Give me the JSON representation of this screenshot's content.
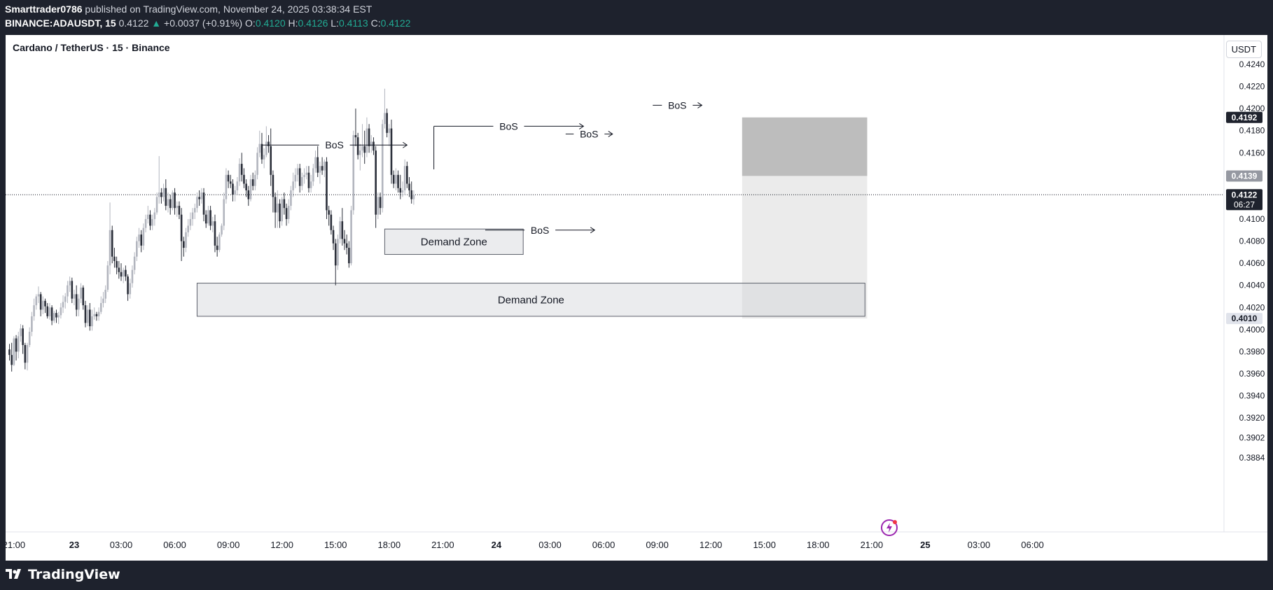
{
  "header": {
    "author": "Smarttrader0786",
    "published_text": "published on TradingView.com, November 24, 2025 03:38:34 EST",
    "symbol": "BINANCE:ADAUSDT, 15",
    "last_price": "0.4122",
    "change": "+0.0037 (+0.91%)",
    "o_label": "O:",
    "o_value": "0.4120",
    "h_label": "H:",
    "h_value": "0.4126",
    "l_label": "L:",
    "l_value": "0.4113",
    "c_label": "C:",
    "c_value": "0.4122"
  },
  "chart_header": {
    "title": "Cardano / TetherUS · 15 · Binance",
    "currency": "USDT"
  },
  "brand": {
    "logo_text": "TradingView"
  },
  "colors": {
    "up": "#b2b5be",
    "down": "#2a2e39",
    "accent": "#22ab94",
    "background": "#ffffff"
  },
  "chart_data": {
    "type": "candlestick",
    "interval": "15",
    "ylim": [
      0.3884,
      0.4252
    ],
    "y_ticks": [
      "0.4240",
      "0.4220",
      "0.4200",
      "0.4180",
      "0.4160",
      "0.4100",
      "0.4080",
      "0.4060",
      "0.4040",
      "0.4020",
      "0.4000",
      "0.3980",
      "0.3960",
      "0.3940",
      "0.3920",
      "0.3902",
      "0.3884"
    ],
    "x_ticks": [
      "21:00",
      "23",
      "03:00",
      "06:00",
      "09:00",
      "12:00",
      "15:00",
      "18:00",
      "21:00",
      "24",
      "03:00",
      "06:00",
      "09:00",
      "12:00",
      "15:00",
      "18:00",
      "21:00",
      "25",
      "03:00",
      "06:00"
    ],
    "x_tick_index": [
      2,
      29,
      50,
      74,
      98,
      122,
      146,
      170,
      194,
      218,
      242,
      266,
      290,
      314,
      338,
      362,
      386,
      410,
      434,
      458
    ],
    "price_labels": [
      {
        "text": "0.4192",
        "value": 0.4192,
        "style": "dark"
      },
      {
        "text": "0.4139",
        "value": 0.4139,
        "style": "grey"
      },
      {
        "text": "0.4122",
        "value": 0.4122,
        "style": "dark",
        "sub": "06:27"
      },
      {
        "text": "0.4010",
        "value": 0.401,
        "style": "light"
      }
    ],
    "current_price": 0.4122,
    "zones": [
      {
        "label": "Demand Zone",
        "x0": 84,
        "x1": 383,
        "top": 0.4042,
        "bottom": 0.4012
      },
      {
        "label": "Demand Zone",
        "x0": 168,
        "x1": 230,
        "top": 0.4091,
        "bottom": 0.4068
      }
    ],
    "position": {
      "x0": 328,
      "x1": 384,
      "target_top": 0.4192,
      "entry": 0.4139,
      "stop": 0.401
    },
    "annotations": [
      {
        "text": "BoS",
        "y": 0.4167,
        "x0": 113,
        "x1": 178,
        "vertical_to": 0.4157
      },
      {
        "text": "BoS",
        "y": 0.4184,
        "x0": 190,
        "x1": 257,
        "vertical_to": 0.4145
      },
      {
        "text": "BoS",
        "y": 0.4177,
        "x0": 249,
        "x1": 270
      },
      {
        "text": "BoS",
        "y": 0.409,
        "x0": 213,
        "x1": 262
      },
      {
        "text": "BoS",
        "y": 0.4203,
        "x0": 288,
        "x1": 310
      }
    ],
    "candles": [
      [
        0.3982,
        0.3987,
        0.3972,
        0.3977
      ],
      [
        0.3977,
        0.3988,
        0.3962,
        0.3968
      ],
      [
        0.3968,
        0.3994,
        0.3967,
        0.3992
      ],
      [
        0.3992,
        0.3995,
        0.3972,
        0.398
      ],
      [
        0.398,
        0.3998,
        0.3974,
        0.3994
      ],
      [
        0.3994,
        0.4005,
        0.3989,
        0.4001
      ],
      [
        0.4001,
        0.4004,
        0.3978,
        0.3986
      ],
      [
        0.3986,
        0.3988,
        0.3964,
        0.397
      ],
      [
        0.397,
        0.3988,
        0.3963,
        0.3986
      ],
      [
        0.3986,
        0.4002,
        0.3984,
        0.3998
      ],
      [
        0.3998,
        0.4016,
        0.3994,
        0.4012
      ],
      [
        0.4012,
        0.4028,
        0.4008,
        0.4022
      ],
      [
        0.4022,
        0.4032,
        0.4018,
        0.403
      ],
      [
        0.403,
        0.4039,
        0.4024,
        0.4032
      ],
      [
        0.4032,
        0.4034,
        0.4012,
        0.4018
      ],
      [
        0.4018,
        0.403,
        0.4014,
        0.4026
      ],
      [
        0.4026,
        0.4028,
        0.4015,
        0.4021
      ],
      [
        0.4021,
        0.4024,
        0.401,
        0.4012
      ],
      [
        0.4012,
        0.4024,
        0.4009,
        0.402
      ],
      [
        0.402,
        0.4022,
        0.4004,
        0.4008
      ],
      [
        0.4008,
        0.4017,
        0.4006,
        0.4015
      ],
      [
        0.4015,
        0.4018,
        0.4006,
        0.4011
      ],
      [
        0.4011,
        0.4016,
        0.4005,
        0.4013
      ],
      [
        0.4013,
        0.4024,
        0.401,
        0.402
      ],
      [
        0.402,
        0.4031,
        0.4015,
        0.4025
      ],
      [
        0.4025,
        0.4033,
        0.4019,
        0.403
      ],
      [
        0.403,
        0.4044,
        0.4024,
        0.404
      ],
      [
        0.404,
        0.4048,
        0.4034,
        0.4044
      ],
      [
        0.4044,
        0.4047,
        0.4024,
        0.4028
      ],
      [
        0.4028,
        0.4036,
        0.4022,
        0.4032
      ],
      [
        0.4032,
        0.404,
        0.4012,
        0.4018
      ],
      [
        0.4018,
        0.4032,
        0.4012,
        0.4028
      ],
      [
        0.4028,
        0.4042,
        0.4024,
        0.4038
      ],
      [
        0.4038,
        0.404,
        0.4018,
        0.4022
      ],
      [
        0.4022,
        0.4026,
        0.4002,
        0.4006
      ],
      [
        0.4006,
        0.4022,
        0.4003,
        0.4018
      ],
      [
        0.4018,
        0.4024,
        0.3999,
        0.4003
      ],
      [
        0.4003,
        0.4018,
        0.3999,
        0.4012
      ],
      [
        0.4012,
        0.402,
        0.4009,
        0.4014
      ],
      [
        0.4014,
        0.4016,
        0.4008,
        0.4012
      ],
      [
        0.4012,
        0.402,
        0.4008,
        0.4016
      ],
      [
        0.4016,
        0.403,
        0.4014,
        0.4024
      ],
      [
        0.4024,
        0.4034,
        0.402,
        0.4028
      ],
      [
        0.4028,
        0.404,
        0.4024,
        0.4036
      ],
      [
        0.4036,
        0.4062,
        0.4034,
        0.4058
      ],
      [
        0.4058,
        0.4115,
        0.405,
        0.409
      ],
      [
        0.409,
        0.4094,
        0.406,
        0.4066
      ],
      [
        0.4066,
        0.4074,
        0.4056,
        0.4062
      ],
      [
        0.4062,
        0.4066,
        0.405,
        0.4056
      ],
      [
        0.4056,
        0.4062,
        0.4046,
        0.4052
      ],
      [
        0.4052,
        0.406,
        0.4044,
        0.4048
      ],
      [
        0.4048,
        0.4056,
        0.4042,
        0.4054
      ],
      [
        0.4054,
        0.4058,
        0.4044,
        0.4048
      ],
      [
        0.4048,
        0.405,
        0.4026,
        0.4032
      ],
      [
        0.4032,
        0.4046,
        0.4028,
        0.4042
      ],
      [
        0.4042,
        0.4058,
        0.4038,
        0.4054
      ],
      [
        0.4054,
        0.407,
        0.405,
        0.4066
      ],
      [
        0.4066,
        0.4084,
        0.4062,
        0.408
      ],
      [
        0.408,
        0.4092,
        0.4074,
        0.4086
      ],
      [
        0.4086,
        0.409,
        0.407,
        0.4076
      ],
      [
        0.4076,
        0.4096,
        0.4072,
        0.4092
      ],
      [
        0.4092,
        0.4104,
        0.4088,
        0.41
      ],
      [
        0.41,
        0.4112,
        0.4096,
        0.4104
      ],
      [
        0.4104,
        0.4108,
        0.409,
        0.4094
      ],
      [
        0.4094,
        0.4104,
        0.409,
        0.41
      ],
      [
        0.41,
        0.411,
        0.4094,
        0.4106
      ],
      [
        0.4106,
        0.4124,
        0.4104,
        0.412
      ],
      [
        0.412,
        0.4157,
        0.4114,
        0.4124
      ],
      [
        0.4124,
        0.4128,
        0.4114,
        0.412
      ],
      [
        0.412,
        0.4132,
        0.4116,
        0.4128
      ],
      [
        0.4128,
        0.4136,
        0.4108,
        0.4112
      ],
      [
        0.4112,
        0.4124,
        0.4106,
        0.4118
      ],
      [
        0.4118,
        0.4122,
        0.4104,
        0.411
      ],
      [
        0.411,
        0.4126,
        0.4108,
        0.4124
      ],
      [
        0.4124,
        0.4128,
        0.4104,
        0.411
      ],
      [
        0.411,
        0.4116,
        0.4102,
        0.4112
      ],
      [
        0.4112,
        0.4116,
        0.41,
        0.4104
      ],
      [
        0.4104,
        0.411,
        0.4062,
        0.408
      ],
      [
        0.408,
        0.4084,
        0.4066,
        0.4074
      ],
      [
        0.4074,
        0.4092,
        0.407,
        0.4088
      ],
      [
        0.4088,
        0.41,
        0.4084,
        0.4094
      ],
      [
        0.4094,
        0.4106,
        0.409,
        0.41
      ],
      [
        0.41,
        0.411,
        0.4094,
        0.4106
      ],
      [
        0.4106,
        0.4114,
        0.41,
        0.411
      ],
      [
        0.411,
        0.4124,
        0.4106,
        0.412
      ],
      [
        0.412,
        0.4126,
        0.4112,
        0.4118
      ],
      [
        0.4118,
        0.4128,
        0.4114,
        0.4124
      ],
      [
        0.4124,
        0.4128,
        0.4098,
        0.4104
      ],
      [
        0.4104,
        0.4108,
        0.4092,
        0.4096
      ],
      [
        0.4096,
        0.4112,
        0.4094,
        0.4108
      ],
      [
        0.4108,
        0.4112,
        0.409,
        0.4094
      ],
      [
        0.4094,
        0.4102,
        0.4088,
        0.4098
      ],
      [
        0.4098,
        0.4104,
        0.407,
        0.4076
      ],
      [
        0.4076,
        0.4084,
        0.4066,
        0.4072
      ],
      [
        0.4072,
        0.4088,
        0.407,
        0.4086
      ],
      [
        0.4086,
        0.4096,
        0.4084,
        0.4094
      ],
      [
        0.4094,
        0.4124,
        0.409,
        0.4118
      ],
      [
        0.4118,
        0.4146,
        0.4114,
        0.414
      ],
      [
        0.414,
        0.4144,
        0.4128,
        0.4134
      ],
      [
        0.4134,
        0.414,
        0.4128,
        0.4132
      ],
      [
        0.4132,
        0.4136,
        0.4116,
        0.4122
      ],
      [
        0.4122,
        0.413,
        0.4116,
        0.4126
      ],
      [
        0.4126,
        0.4138,
        0.4122,
        0.4134
      ],
      [
        0.4134,
        0.4155,
        0.413,
        0.415
      ],
      [
        0.415,
        0.416,
        0.4134,
        0.414
      ],
      [
        0.414,
        0.4146,
        0.4128,
        0.4132
      ],
      [
        0.4132,
        0.4136,
        0.412,
        0.4126
      ],
      [
        0.4126,
        0.413,
        0.4112,
        0.4118
      ],
      [
        0.4118,
        0.414,
        0.4116,
        0.4136
      ],
      [
        0.4136,
        0.4142,
        0.4126,
        0.413
      ],
      [
        0.413,
        0.4144,
        0.4126,
        0.414
      ],
      [
        0.414,
        0.4165,
        0.4136,
        0.416
      ],
      [
        0.416,
        0.418,
        0.4156,
        0.4168
      ],
      [
        0.4168,
        0.4178,
        0.415,
        0.4154
      ],
      [
        0.4154,
        0.4164,
        0.4146,
        0.4158
      ],
      [
        0.4158,
        0.4184,
        0.4156,
        0.417
      ],
      [
        0.417,
        0.4176,
        0.416,
        0.4166
      ],
      [
        0.4166,
        0.4182,
        0.413,
        0.414
      ],
      [
        0.414,
        0.4144,
        0.4106,
        0.412
      ],
      [
        0.412,
        0.4124,
        0.4092,
        0.4106
      ],
      [
        0.4106,
        0.4126,
        0.4092,
        0.4114
      ],
      [
        0.4114,
        0.4118,
        0.4092,
        0.4098
      ],
      [
        0.4098,
        0.412,
        0.4094,
        0.4118
      ],
      [
        0.4118,
        0.4124,
        0.4104,
        0.411
      ],
      [
        0.411,
        0.4114,
        0.4094,
        0.41
      ],
      [
        0.41,
        0.4118,
        0.4096,
        0.4112
      ],
      [
        0.4112,
        0.413,
        0.4108,
        0.4126
      ],
      [
        0.4126,
        0.4142,
        0.412,
        0.4134
      ],
      [
        0.4134,
        0.4146,
        0.4128,
        0.414
      ],
      [
        0.414,
        0.415,
        0.4134,
        0.4146
      ],
      [
        0.4146,
        0.415,
        0.4124,
        0.413
      ],
      [
        0.413,
        0.4142,
        0.4126,
        0.4138
      ],
      [
        0.4138,
        0.4146,
        0.4132,
        0.414
      ],
      [
        0.414,
        0.4148,
        0.4136,
        0.4142
      ],
      [
        0.4142,
        0.4148,
        0.4124,
        0.4128
      ],
      [
        0.4128,
        0.414,
        0.4124,
        0.4134
      ],
      [
        0.4134,
        0.415,
        0.413,
        0.4146
      ],
      [
        0.4146,
        0.4162,
        0.4142,
        0.4156
      ],
      [
        0.4156,
        0.4166,
        0.4138,
        0.4142
      ],
      [
        0.4142,
        0.4152,
        0.4132,
        0.4148
      ],
      [
        0.4148,
        0.4156,
        0.414,
        0.4144
      ],
      [
        0.4144,
        0.4154,
        0.4138,
        0.4152
      ],
      [
        0.4152,
        0.4156,
        0.41,
        0.4108
      ],
      [
        0.4108,
        0.4112,
        0.4094,
        0.4104
      ],
      [
        0.4104,
        0.4108,
        0.4086,
        0.409
      ],
      [
        0.409,
        0.4094,
        0.4072,
        0.4078
      ],
      [
        0.4078,
        0.4082,
        0.404,
        0.4058
      ],
      [
        0.4058,
        0.4086,
        0.4054,
        0.4082
      ],
      [
        0.4082,
        0.4102,
        0.4078,
        0.4098
      ],
      [
        0.4098,
        0.411,
        0.4076,
        0.4082
      ],
      [
        0.4082,
        0.409,
        0.4072,
        0.4078
      ],
      [
        0.4078,
        0.4086,
        0.4068,
        0.4074
      ],
      [
        0.4074,
        0.408,
        0.4056,
        0.406
      ],
      [
        0.406,
        0.4112,
        0.4058,
        0.4108
      ],
      [
        0.4108,
        0.418,
        0.4104,
        0.4176
      ],
      [
        0.4176,
        0.42,
        0.4166,
        0.4174
      ],
      [
        0.4174,
        0.4178,
        0.4154,
        0.4158
      ],
      [
        0.4158,
        0.4168,
        0.4144,
        0.4162
      ],
      [
        0.4162,
        0.4186,
        0.4156,
        0.4166
      ],
      [
        0.4166,
        0.418,
        0.415,
        0.416
      ],
      [
        0.416,
        0.4192,
        0.4156,
        0.4182
      ],
      [
        0.4182,
        0.4186,
        0.416,
        0.4166
      ],
      [
        0.4166,
        0.4176,
        0.416,
        0.417
      ],
      [
        0.417,
        0.4174,
        0.4158,
        0.4162
      ],
      [
        0.4162,
        0.4166,
        0.4092,
        0.4104
      ],
      [
        0.4104,
        0.4124,
        0.41,
        0.412
      ],
      [
        0.412,
        0.4124,
        0.4104,
        0.411
      ],
      [
        0.411,
        0.419,
        0.4106,
        0.4186
      ],
      [
        0.4186,
        0.4218,
        0.4182,
        0.4196
      ],
      [
        0.4196,
        0.42,
        0.4174,
        0.4178
      ],
      [
        0.4178,
        0.4186,
        0.4166,
        0.4182
      ],
      [
        0.4182,
        0.419,
        0.4132,
        0.414
      ],
      [
        0.414,
        0.4144,
        0.4128,
        0.4132
      ],
      [
        0.4132,
        0.4146,
        0.4126,
        0.414
      ],
      [
        0.414,
        0.4144,
        0.4124,
        0.4128
      ],
      [
        0.4128,
        0.414,
        0.4118,
        0.4124
      ],
      [
        0.4124,
        0.4134,
        0.412,
        0.4126
      ],
      [
        0.4126,
        0.4154,
        0.4122,
        0.4148
      ],
      [
        0.4148,
        0.4152,
        0.4128,
        0.4132
      ],
      [
        0.4132,
        0.4138,
        0.412,
        0.4126
      ],
      [
        0.4126,
        0.4134,
        0.4114,
        0.4118
      ],
      [
        0.4118,
        0.4126,
        0.4113,
        0.4122
      ]
    ]
  }
}
